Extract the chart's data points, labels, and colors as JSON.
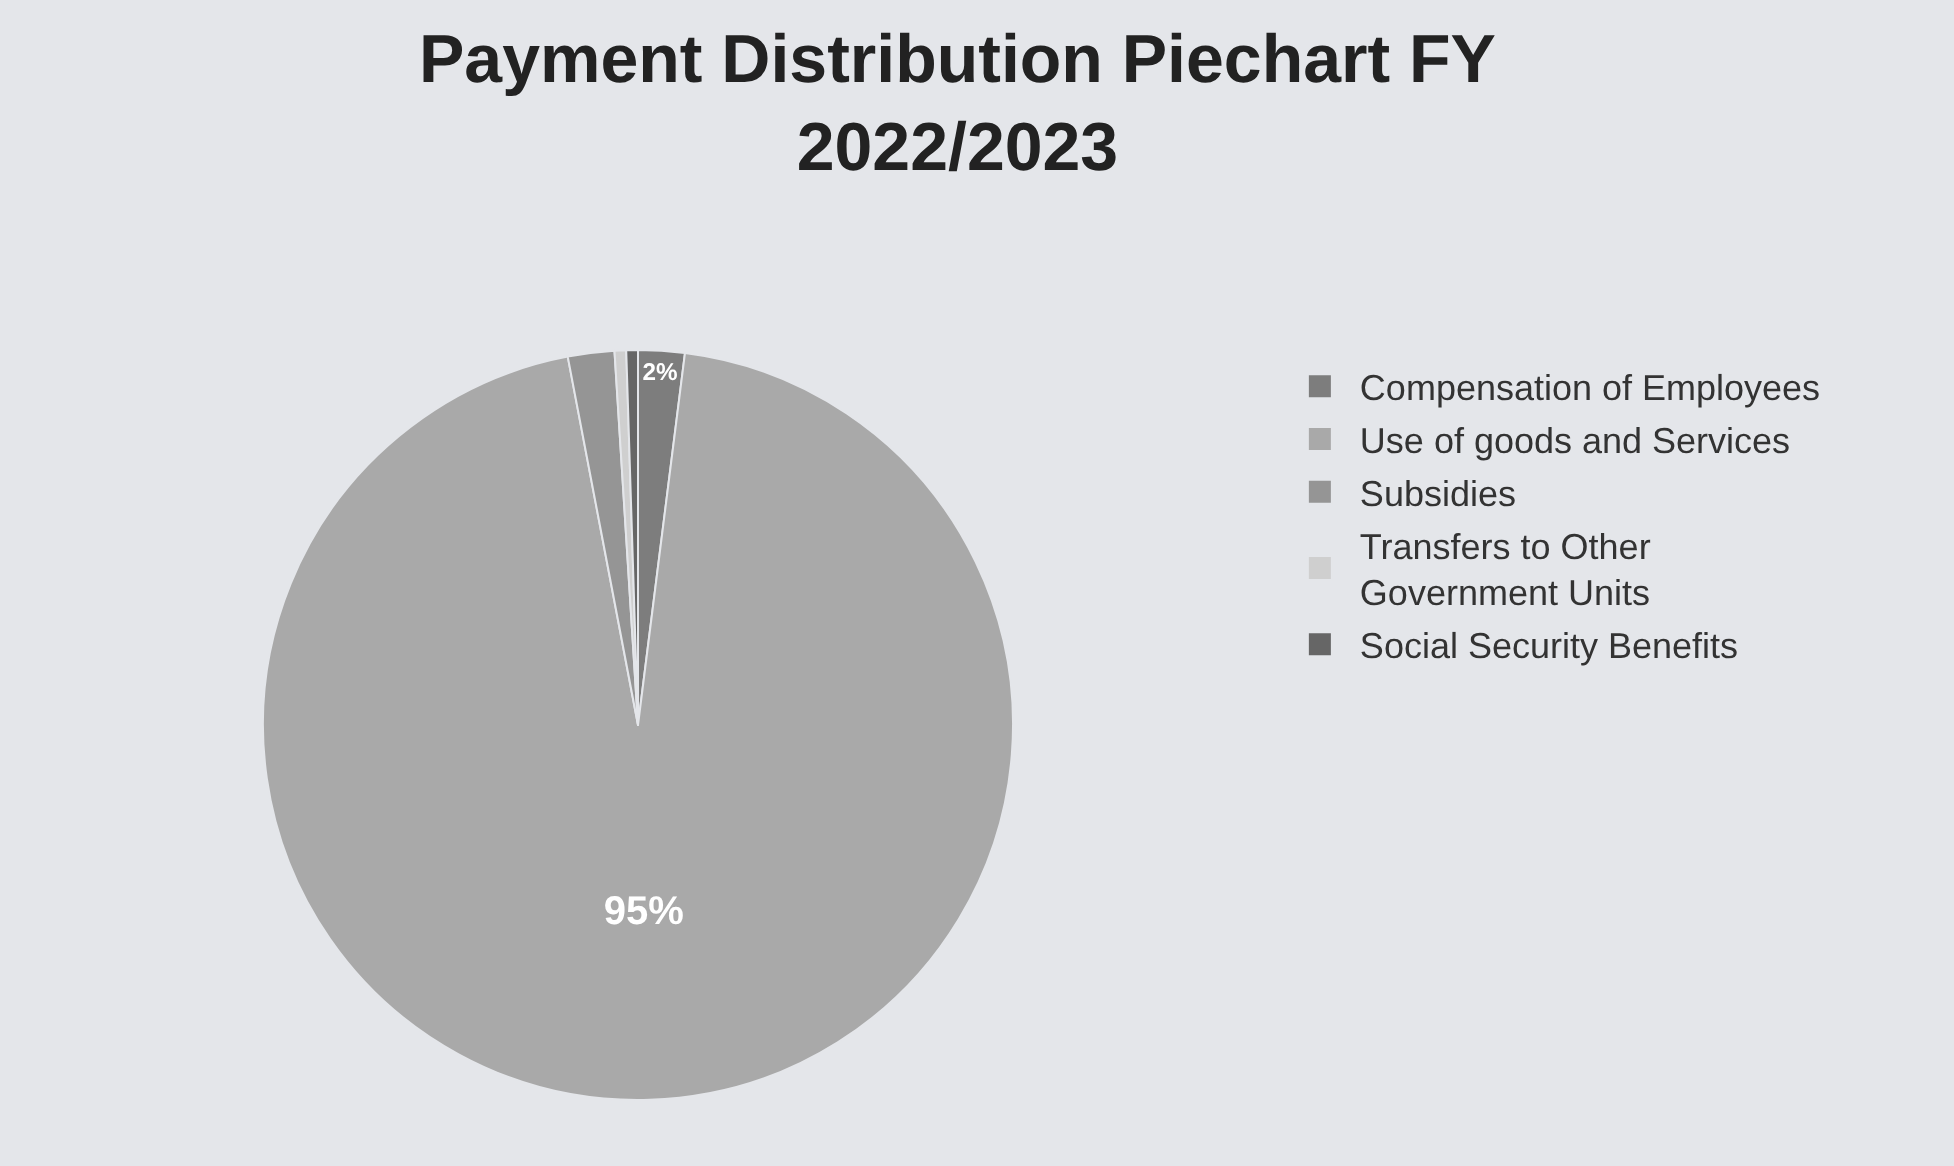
{
  "chart_data": {
    "type": "pie",
    "title": "Payment Distribution Piechart FY 2022/2023",
    "categories": [
      "Compensation of Employees",
      "Use of goods and Services",
      "Subsidies",
      "Transfers to Other Government Units",
      "Social Security Benefits"
    ],
    "values": [
      2,
      95,
      2,
      0.5,
      0.5
    ],
    "colors": [
      "#7d7d7d",
      "#a9a9a9",
      "#959595",
      "#cfcfcf",
      "#666666"
    ],
    "value_labels": [
      "2%",
      "95%",
      null,
      null,
      null
    ],
    "legend": "right"
  }
}
